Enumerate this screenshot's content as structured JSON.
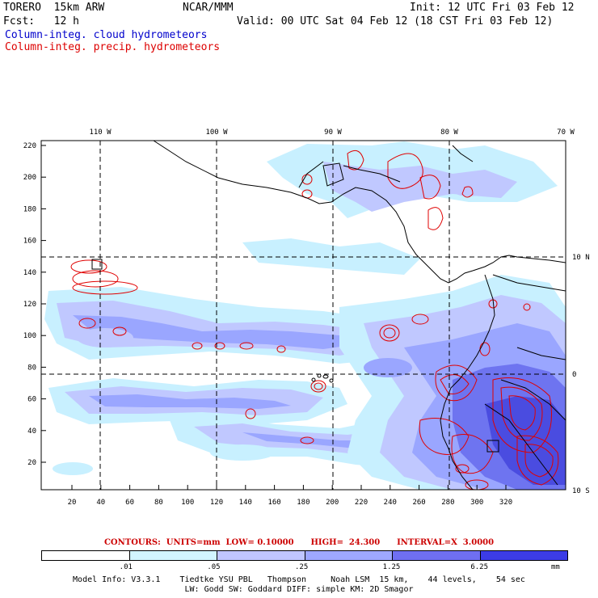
{
  "header": {
    "model": "TORERO  15km ARW",
    "org": "NCAR/MMM",
    "init": "Init: 12 UTC Fri 03 Feb 12",
    "fcst": "Fcst:   12 h",
    "valid": "Valid: 00 UTC Sat 04 Feb 12 (18 CST Fri 03 Feb 12)",
    "field1": "Column-integ. cloud hydrometeors",
    "field2": "Column-integ. precip. hydrometeors"
  },
  "map": {
    "x_ticks": [
      "20",
      "40",
      "60",
      "80",
      "100",
      "120",
      "140",
      "160",
      "180",
      "200",
      "220",
      "240",
      "260",
      "280",
      "300",
      "320"
    ],
    "y_ticks": [
      "20",
      "40",
      "60",
      "80",
      "100",
      "120",
      "140",
      "160",
      "180",
      "200",
      "220"
    ],
    "lon_labels": [
      "110 W",
      "100 W",
      "90 W",
      "80 W",
      "70 W"
    ],
    "lat_labels": [
      "10 N",
      "0",
      "10 S"
    ],
    "colors": {
      "cloud_light": "#c8f0ff",
      "cloud_mid1": "#c0c8ff",
      "cloud_mid2": "#9aa6ff",
      "cloud_dark": "#6e74f0",
      "cloud_darker": "#4a4ce0",
      "precip": "#e00000",
      "coast": "#000000"
    }
  },
  "contours": {
    "label": "CONTOURS:  UNITS=mm  LOW= 0.10000      HIGH=  24.300      INTERVAL=X  3.0000"
  },
  "colorbar": {
    "colors": [
      "#ffffff",
      "#d2f5ff",
      "#c0c6ff",
      "#9ea8ff",
      "#6f6ff2",
      "#3c3ce6"
    ],
    "labels": [
      ".01",
      ".05",
      ".25",
      "1.25",
      "6.25"
    ],
    "units": "mm"
  },
  "footer": {
    "line1": "Model Info: V3.3.1    Tiedtke YSU PBL   Thompson     Noah LSM  15 km,    44 levels,    54 sec",
    "line2": "LW: Godd SW: Goddard DIFF: simple KM: 2D Smagor"
  }
}
